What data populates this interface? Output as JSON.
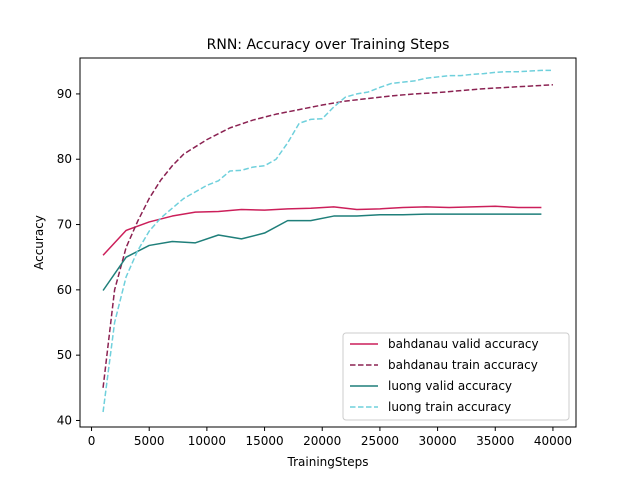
{
  "chart_data": {
    "type": "line",
    "title": "RNN: Accuracy over Training Steps",
    "xlabel": "TrainingSteps",
    "ylabel": "Accuracy",
    "xlim": [
      -1000,
      42000
    ],
    "ylim": [
      39,
      95.5
    ],
    "xticks": [
      0,
      5000,
      10000,
      15000,
      20000,
      25000,
      30000,
      35000,
      40000
    ],
    "yticks": [
      40,
      50,
      60,
      70,
      80,
      90
    ],
    "grid": false,
    "legend_position": "lower-right",
    "series": [
      {
        "name": "bahdanau valid accuracy",
        "color": "#cc1f5a",
        "dash": "solid",
        "x": [
          1000,
          3000,
          5000,
          7000,
          9000,
          11000,
          13000,
          15000,
          17000,
          19000,
          21000,
          23000,
          25000,
          27000,
          29000,
          31000,
          33000,
          35000,
          37000,
          39000
        ],
        "y": [
          65.3,
          69.1,
          70.4,
          71.3,
          71.9,
          72.0,
          72.3,
          72.2,
          72.4,
          72.5,
          72.7,
          72.3,
          72.4,
          72.6,
          72.7,
          72.6,
          72.7,
          72.8,
          72.6,
          72.6
        ]
      },
      {
        "name": "bahdanau train accuracy",
        "color": "#8b2252",
        "dash": "dashed",
        "x": [
          1000,
          2000,
          3000,
          4000,
          5000,
          6000,
          7000,
          8000,
          9000,
          10000,
          12000,
          14000,
          16000,
          18000,
          20000,
          22000,
          24000,
          26000,
          28000,
          30000,
          32000,
          34000,
          36000,
          38000,
          40000
        ],
        "y": [
          45.0,
          60.0,
          66.5,
          70.5,
          74.0,
          76.8,
          79.0,
          80.8,
          81.9,
          83.0,
          84.8,
          86.0,
          86.9,
          87.6,
          88.3,
          88.9,
          89.3,
          89.7,
          90.0,
          90.2,
          90.5,
          90.8,
          91.0,
          91.2,
          91.4
        ]
      },
      {
        "name": "luong valid accuracy",
        "color": "#1f7f7a",
        "dash": "solid",
        "x": [
          1000,
          3000,
          5000,
          7000,
          9000,
          11000,
          13000,
          15000,
          17000,
          19000,
          21000,
          23000,
          25000,
          27000,
          29000,
          31000,
          33000,
          35000,
          37000,
          39000
        ],
        "y": [
          59.9,
          65.0,
          66.8,
          67.4,
          67.2,
          68.4,
          67.8,
          68.7,
          70.6,
          70.6,
          71.3,
          71.3,
          71.5,
          71.5,
          71.6,
          71.6,
          71.6,
          71.6,
          71.6,
          71.6
        ]
      },
      {
        "name": "luong train accuracy",
        "color": "#6fd0dc",
        "dash": "dashed",
        "x": [
          1000,
          2000,
          3000,
          4000,
          5000,
          6000,
          7000,
          8000,
          9000,
          10000,
          11000,
          12000,
          13000,
          14000,
          15000,
          16000,
          17000,
          18000,
          19000,
          20000,
          21000,
          22000,
          23000,
          24000,
          25000,
          26000,
          27000,
          28000,
          29000,
          30000,
          31000,
          32000,
          33000,
          34000,
          35000,
          36000,
          37000,
          38000,
          39000,
          40000
        ],
        "y": [
          41.3,
          55.0,
          62.0,
          66.0,
          69.0,
          71.0,
          72.5,
          74.0,
          75.0,
          76.0,
          76.7,
          78.2,
          78.3,
          78.8,
          79.0,
          80.0,
          82.5,
          85.5,
          86.1,
          86.2,
          88.0,
          89.5,
          90.0,
          90.3,
          91.0,
          91.6,
          91.8,
          92.0,
          92.4,
          92.6,
          92.8,
          92.8,
          93.0,
          93.1,
          93.3,
          93.4,
          93.4,
          93.5,
          93.6,
          93.6
        ]
      }
    ]
  }
}
